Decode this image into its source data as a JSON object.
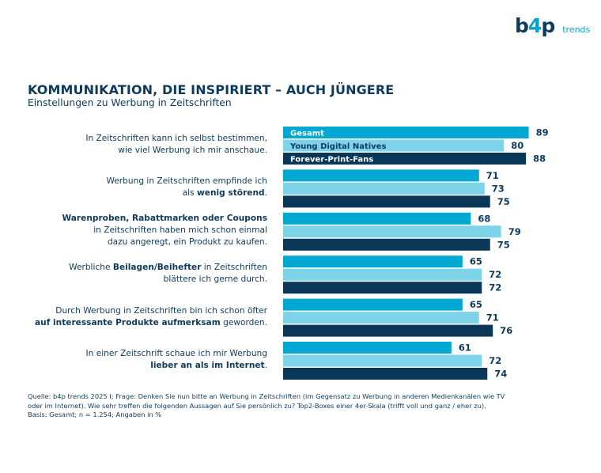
{
  "logo": {
    "main_left": "b",
    "main_mid": "4",
    "main_right": "p",
    "sub": "trends"
  },
  "header": {
    "title": "KOMMUNIKATION, DIE INSPIRIERT – AUCH JÜNGERE",
    "subtitle": "Einstellungen zu Werbung in Zeitschriften"
  },
  "colors": {
    "Gesamt": "#00a8d2",
    "Young Digital Natives": "#7dd3e8",
    "Forever-Print-Fans": "#083758"
  },
  "statements": [
    {
      "parts": [
        {
          "text": "In Zeitschriften kann ich selbst bestimmen,",
          "bold": false
        },
        {
          "br": true
        },
        {
          "text": "wie viel Werbung ich mir anschaue.",
          "bold": false
        }
      ]
    },
    {
      "parts": [
        {
          "text": "Werbung in Zeitschriften empfinde ich",
          "bold": false
        },
        {
          "br": true
        },
        {
          "text": "als ",
          "bold": false
        },
        {
          "text": "wenig störend",
          "bold": true
        },
        {
          "text": ".",
          "bold": false
        }
      ]
    },
    {
      "parts": [
        {
          "text": "Warenproben, Rabattmarken oder Coupons",
          "bold": true
        },
        {
          "br": true
        },
        {
          "text": "in Zeitschriften haben mich schon einmal",
          "bold": false
        },
        {
          "br": true
        },
        {
          "text": "dazu angeregt, ein Produkt zu kaufen.",
          "bold": false
        }
      ]
    },
    {
      "parts": [
        {
          "text": "Werbliche ",
          "bold": false
        },
        {
          "text": "Beilagen/Beihefter",
          "bold": true
        },
        {
          "text": " in Zeitschriften",
          "bold": false
        },
        {
          "br": true
        },
        {
          "text": "blättere ich gerne durch.",
          "bold": false
        }
      ]
    },
    {
      "parts": [
        {
          "text": "Durch Werbung in Zeitschriften bin ich schon öfter",
          "bold": false
        },
        {
          "br": true
        },
        {
          "text": "auf interessante Produkte aufmerksam",
          "bold": true
        },
        {
          "text": " geworden.",
          "bold": false
        }
      ]
    },
    {
      "parts": [
        {
          "text": "In einer Zeitschrift schaue ich mir Werbung",
          "bold": false
        },
        {
          "br": true
        },
        {
          "text": "lieber an als im Internet",
          "bold": true
        },
        {
          "text": ".",
          "bold": false
        }
      ]
    }
  ],
  "chart_data": {
    "type": "bar",
    "orientation": "horizontal",
    "title": "KOMMUNIKATION, DIE INSPIRIERT – AUCH JÜNGERE",
    "subtitle": "Einstellungen zu Werbung in Zeitschriften",
    "categories": [
      "In Zeitschriften kann ich selbst bestimmen, wie viel Werbung ich mir anschaue.",
      "Werbung in Zeitschriften empfinde ich als wenig störend.",
      "Warenproben, Rabattmarken oder Coupons in Zeitschriften haben mich schon einmal dazu angeregt, ein Produkt zu kaufen.",
      "Werbliche Beilagen/Beihefter in Zeitschriften blättere ich gerne durch.",
      "Durch Werbung in Zeitschriften bin ich schon öfter auf interessante Produkte aufmerksam geworden.",
      "In einer Zeitschrift schaue ich mir Werbung lieber an als im Internet."
    ],
    "series": [
      {
        "name": "Gesamt",
        "values": [
          89,
          71,
          68,
          65,
          65,
          61
        ]
      },
      {
        "name": "Young Digital Natives",
        "values": [
          80,
          73,
          79,
          72,
          71,
          72
        ]
      },
      {
        "name": "Forever-Print-Fans",
        "values": [
          88,
          75,
          75,
          72,
          76,
          74
        ]
      }
    ],
    "legend": "inside-first-group-bars",
    "xlim": [
      0,
      100
    ],
    "unit": "%",
    "grid": false,
    "xlabel": "",
    "ylabel": ""
  },
  "footnote": {
    "line1": "Quelle: b4p trends 2025 I; Frage: Denken Sie nun bitte an Werbung in Zeitschriften (im Gegensatz zu Werbung in anderen Medienkanälen wie TV",
    "line2": "oder im Internet). Wie sehr treffen die folgenden Aussagen auf Sie persönlich zu? Top2-Boxes einer 4er-Skala (trifft voll und ganz / eher zu).",
    "line3": "Basis: Gesamt; n = 1.254; Angaben in %"
  }
}
